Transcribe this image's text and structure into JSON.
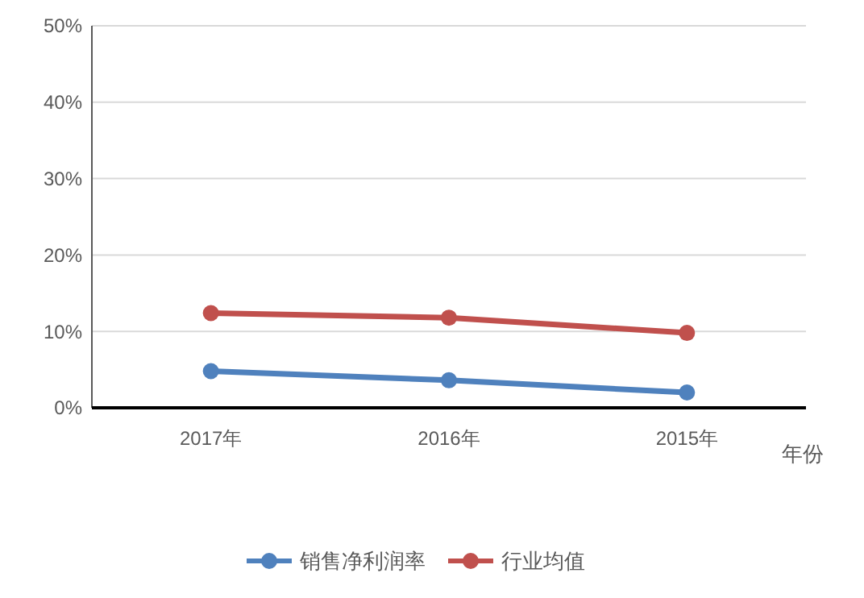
{
  "chart_data": {
    "type": "line",
    "xlabel": "年份",
    "categories": [
      "2017年",
      "2016年",
      "2015年"
    ],
    "series": [
      {
        "name": "销售净利润率",
        "color": "#4f81bd",
        "values": [
          4.8,
          3.6,
          2.0
        ]
      },
      {
        "name": "行业均值",
        "color": "#c0504d",
        "values": [
          12.4,
          11.8,
          9.8
        ]
      }
    ],
    "ylim": [
      0,
      50
    ],
    "yticks": [
      {
        "value": 0,
        "label": "0%"
      },
      {
        "value": 10,
        "label": "10%"
      },
      {
        "value": 20,
        "label": "20%"
      },
      {
        "value": 30,
        "label": "30%"
      },
      {
        "value": 40,
        "label": "40%"
      },
      {
        "value": 50,
        "label": "50%"
      }
    ],
    "grid": "y",
    "legend": "bottom",
    "marker": "circle",
    "line_style": "solid"
  }
}
